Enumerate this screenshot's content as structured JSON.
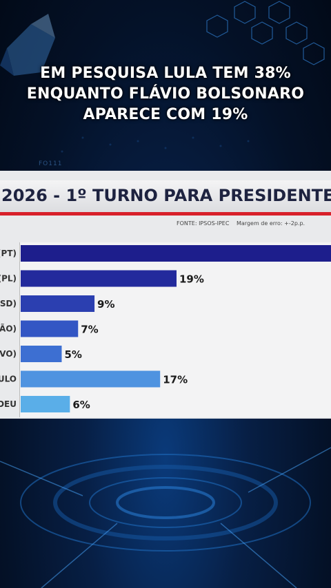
{
  "headline": {
    "line1": "EM PESQUISA LULA TEM 38%",
    "line2": "ENQUANTO FLÁVIO BOLSONARO",
    "line3": "APARECE COM 19%"
  },
  "watermark": "FO111",
  "chart_data": {
    "type": "bar",
    "orientation": "horizontal",
    "title": "2026 - 1º TURNO PARA PRESIDENTE",
    "source": "FONTE: IPSOS-IPEC",
    "margin_of_error": "Margem de erro: +-2p.p.",
    "categories": [
      "(PT)",
      "(PL)",
      "PSD)",
      "IÃO)",
      "OVO)",
      "ULO",
      "DEU"
    ],
    "values": [
      38,
      19,
      9,
      7,
      5,
      17,
      6
    ],
    "value_labels": [
      "",
      "19%",
      "9%",
      "7%",
      "5%",
      "17%",
      "6%"
    ],
    "colors": [
      "#1d1e8c",
      "#232a9c",
      "#2b3fb0",
      "#3356c4",
      "#3d6fd2",
      "#4f93e0",
      "#5aaee8"
    ],
    "xlim": [
      0,
      38
    ]
  }
}
